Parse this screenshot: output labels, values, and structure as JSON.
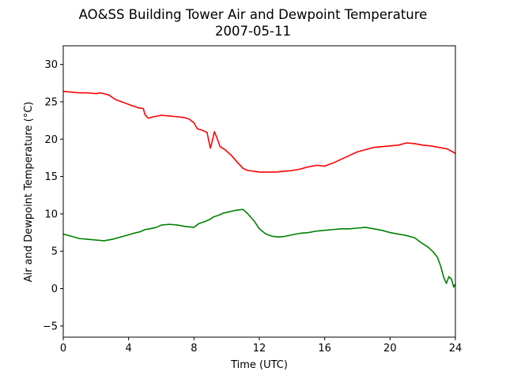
{
  "chart_data": {
    "type": "line",
    "title": "AO&SS Building Tower Air and Dewpoint Temperature",
    "subtitle": "2007-05-11",
    "xlabel": "Time (UTC)",
    "ylabel": "Air and Dewpoint Temperature (°C)",
    "xlim": [
      0,
      24
    ],
    "ylim": [
      -6.5,
      32.5
    ],
    "xticks": [
      0,
      4,
      8,
      12,
      16,
      20,
      24
    ],
    "yticks": [
      -5,
      0,
      5,
      10,
      15,
      20,
      25,
      30
    ],
    "grid": false,
    "legend": "none",
    "series": [
      {
        "color": "#ff0000",
        "x": [
          0,
          0.5,
          1,
          1.5,
          2,
          2.3,
          2.8,
          3.2,
          3.7,
          4.2,
          4.6,
          4.9,
          5.0,
          5.2,
          5.5,
          6.0,
          6.5,
          7.0,
          7.4,
          7.7,
          8.0,
          8.2,
          8.5,
          8.8,
          9.0,
          9.1,
          9.25,
          9.4,
          9.6,
          9.9,
          10.3,
          10.7,
          11.0,
          11.3,
          11.7,
          12.0,
          12.5,
          13.0,
          13.5,
          14.0,
          14.5,
          15.0,
          15.5,
          16.0,
          16.5,
          17.0,
          17.5,
          18.0,
          18.5,
          19.0,
          19.5,
          20.0,
          20.5,
          21.0,
          21.5,
          22.0,
          22.5,
          23.0,
          23.5,
          24.0
        ],
        "y": [
          26.4,
          26.3,
          26.2,
          26.2,
          26.1,
          26.2,
          25.9,
          25.3,
          24.9,
          24.5,
          24.2,
          24.1,
          23.3,
          22.8,
          23.0,
          23.2,
          23.1,
          23.0,
          22.9,
          22.7,
          22.2,
          21.4,
          21.2,
          20.9,
          18.8,
          19.6,
          21.0,
          20.2,
          19.0,
          18.6,
          17.8,
          16.8,
          16.1,
          15.8,
          15.7,
          15.6,
          15.6,
          15.6,
          15.7,
          15.8,
          16.0,
          16.3,
          16.5,
          16.4,
          16.8,
          17.3,
          17.8,
          18.3,
          18.6,
          18.9,
          19.0,
          19.1,
          19.2,
          19.5,
          19.4,
          19.2,
          19.1,
          18.9,
          18.7,
          18.1
        ]
      },
      {
        "color": "#008000",
        "x": [
          0,
          0.5,
          1,
          1.5,
          2,
          2.5,
          3,
          3.5,
          4,
          4.3,
          4.7,
          5.0,
          5.3,
          5.7,
          6.0,
          6.5,
          7.0,
          7.5,
          8.0,
          8.3,
          8.7,
          9.0,
          9.2,
          9.5,
          9.8,
          10.2,
          10.6,
          11.0,
          11.3,
          11.7,
          12.0,
          12.4,
          12.8,
          13.2,
          13.6,
          14.0,
          14.5,
          15.0,
          15.5,
          16.0,
          16.5,
          17.0,
          17.5,
          18.0,
          18.5,
          19.0,
          19.5,
          20.0,
          20.5,
          21.0,
          21.5,
          22.0,
          22.3,
          22.6,
          22.9,
          23.1,
          23.3,
          23.45,
          23.6,
          23.75,
          23.9,
          24.0
        ],
        "y": [
          7.3,
          7.0,
          6.7,
          6.6,
          6.5,
          6.4,
          6.6,
          6.9,
          7.2,
          7.4,
          7.6,
          7.9,
          8.0,
          8.2,
          8.5,
          8.6,
          8.5,
          8.3,
          8.2,
          8.7,
          9.0,
          9.3,
          9.6,
          9.8,
          10.1,
          10.3,
          10.5,
          10.6,
          10.0,
          9.0,
          8.0,
          7.3,
          7.0,
          6.9,
          7.0,
          7.2,
          7.4,
          7.5,
          7.7,
          7.8,
          7.9,
          8.0,
          8.0,
          8.1,
          8.2,
          8.0,
          7.8,
          7.5,
          7.3,
          7.1,
          6.8,
          6.0,
          5.6,
          5.0,
          4.2,
          3.0,
          1.4,
          0.7,
          1.6,
          1.3,
          0.2,
          0.6
        ]
      }
    ]
  }
}
